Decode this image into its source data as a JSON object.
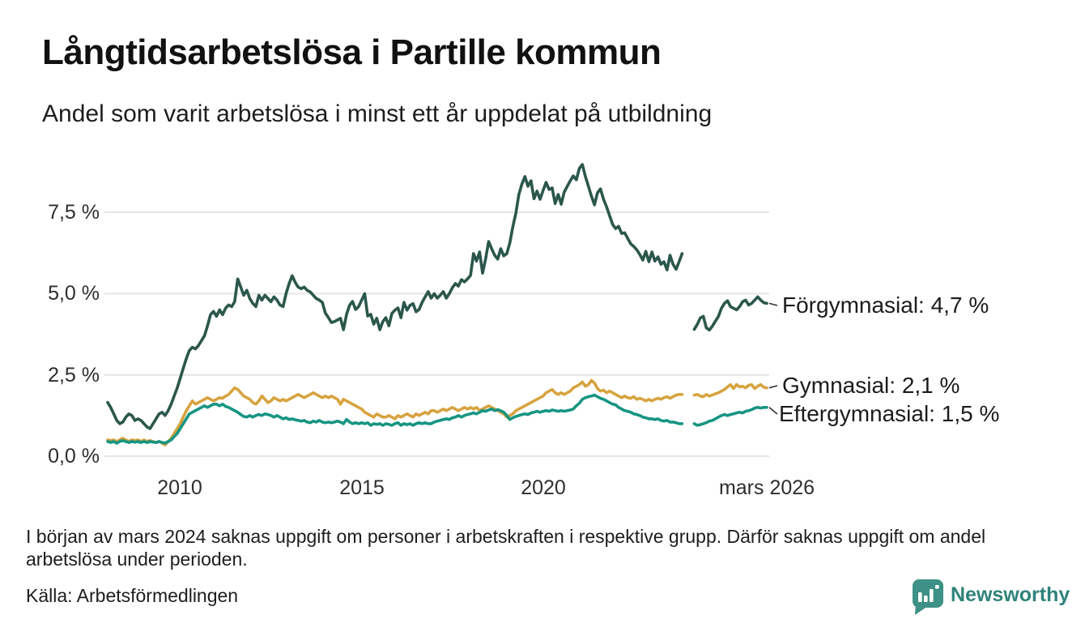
{
  "header": {
    "title": "Långtidsarbetslösa i Partille kommun",
    "subtitle": "Andel som varit arbetslösa i minst ett år uppdelat på utbildning"
  },
  "footer": {
    "note": "I början av mars 2024 saknas uppgift om personer i arbetskraften i respektive grupp. Därför saknas uppgift om andel arbetslösa under perioden.",
    "source": "Källa: Arbetsförmedlingen"
  },
  "branding": {
    "name": "Newsworthy",
    "icon": "newsworthy-speech-bubble-bar-chart-icon",
    "color": "#2f837a",
    "icon_color": "#3e9186"
  },
  "chart_data": {
    "type": "line",
    "unit": "%",
    "x_interval": "monthly",
    "x_start": "2008-01",
    "x_end": "2026-03",
    "missing_data_period": "2023-12 till 2024-02",
    "ylim": [
      0,
      9.5
    ],
    "grid": "horizontal",
    "y_tick_values": [
      0,
      2.5,
      5.0,
      7.5
    ],
    "y_tick_labels": [
      "7,5 %",
      "5,0 %",
      "2,5 %",
      "0,0 %"
    ],
    "x_tick_labels": [
      "2010",
      "2015",
      "2020",
      "mars 2026"
    ],
    "x_tick_month_index": [
      24,
      84,
      144,
      218
    ],
    "colors": {
      "grid": "#e5e5e5",
      "connector": "#333333"
    },
    "series": [
      {
        "id": "forgymnasial",
        "name": "Förgymnasial",
        "end_label": "Förgymnasial: 4,7 %",
        "end_value": 4.7,
        "color": "#2b574b",
        "values": [
          1.65,
          1.5,
          1.3,
          1.1,
          1.0,
          1.05,
          1.2,
          1.3,
          1.25,
          1.1,
          1.15,
          1.1,
          1.0,
          0.9,
          0.85,
          1.0,
          1.15,
          1.3,
          1.35,
          1.25,
          1.4,
          1.6,
          1.85,
          2.1,
          2.4,
          2.7,
          3.0,
          3.25,
          3.35,
          3.3,
          3.4,
          3.55,
          3.7,
          4.0,
          4.35,
          4.45,
          4.3,
          4.5,
          4.35,
          4.55,
          4.65,
          4.6,
          4.75,
          5.45,
          5.2,
          4.95,
          5.1,
          4.85,
          4.7,
          4.6,
          4.95,
          4.8,
          4.95,
          4.85,
          4.75,
          4.9,
          4.8,
          4.65,
          4.6,
          5.0,
          5.3,
          5.55,
          5.35,
          5.2,
          5.15,
          5.2,
          5.1,
          5.05,
          4.95,
          4.85,
          4.8,
          4.73,
          4.4,
          4.26,
          4.11,
          4.14,
          4.19,
          4.24,
          3.89,
          4.36,
          4.64,
          4.76,
          4.51,
          4.6,
          4.8,
          5.0,
          4.31,
          4.36,
          4.06,
          4.24,
          3.89,
          4.14,
          4.26,
          4.01,
          4.39,
          4.49,
          4.56,
          4.26,
          4.73,
          4.49,
          4.64,
          4.69,
          4.44,
          4.51,
          4.73,
          4.9,
          5.06,
          4.86,
          5.0,
          4.86,
          4.95,
          5.06,
          4.86,
          5.0,
          5.18,
          5.31,
          5.23,
          5.43,
          5.36,
          5.45,
          5.56,
          6.23,
          6.0,
          6.28,
          5.63,
          6.06,
          6.6,
          6.38,
          6.18,
          6.06,
          6.38,
          6.16,
          6.23,
          6.55,
          7.05,
          7.47,
          8.05,
          8.37,
          8.6,
          8.3,
          8.47,
          7.92,
          8.15,
          7.9,
          8.17,
          8.42,
          8.2,
          8.25,
          7.77,
          8.05,
          7.75,
          8.12,
          8.3,
          8.47,
          8.62,
          8.5,
          8.85,
          8.97,
          8.6,
          8.3,
          8.0,
          7.73,
          8.1,
          8.22,
          7.9,
          7.67,
          7.4,
          7.13,
          7.0,
          7.07,
          6.85,
          6.87,
          6.7,
          6.53,
          6.45,
          6.35,
          6.2,
          6.03,
          6.3,
          5.98,
          6.28,
          6.0,
          6.13,
          5.9,
          5.98,
          5.73,
          6.18,
          5.9,
          5.75,
          5.98,
          6.23,
          null,
          null,
          null,
          3.9,
          4.05,
          4.25,
          4.3,
          3.95,
          3.88,
          4.0,
          4.15,
          4.3,
          4.55,
          4.7,
          4.78,
          4.6,
          4.55,
          4.5,
          4.6,
          4.75,
          4.8,
          4.65,
          4.7,
          4.8,
          4.9,
          4.8,
          4.72,
          4.7
        ]
      },
      {
        "id": "gymnasial",
        "name": "Gymnasial",
        "end_label": "Gymnasial: 2,1 %",
        "end_value": 2.1,
        "color": "#d7a33f",
        "values": [
          0.5,
          0.48,
          0.5,
          0.45,
          0.5,
          0.55,
          0.5,
          0.45,
          0.5,
          0.48,
          0.5,
          0.45,
          0.5,
          0.45,
          0.48,
          0.45,
          0.42,
          0.45,
          0.4,
          0.35,
          0.45,
          0.55,
          0.7,
          0.85,
          1.0,
          1.2,
          1.4,
          1.55,
          1.7,
          1.6,
          1.65,
          1.7,
          1.75,
          1.8,
          1.75,
          1.7,
          1.75,
          1.8,
          1.78,
          1.85,
          1.9,
          2.0,
          2.1,
          2.05,
          1.95,
          1.85,
          1.8,
          1.75,
          1.65,
          1.6,
          1.7,
          1.85,
          1.75,
          1.65,
          1.7,
          1.8,
          1.75,
          1.7,
          1.75,
          1.7,
          1.75,
          1.8,
          1.85,
          1.9,
          1.85,
          1.8,
          1.85,
          1.9,
          1.95,
          1.9,
          1.85,
          1.8,
          1.85,
          1.8,
          1.85,
          1.8,
          1.75,
          1.6,
          1.75,
          1.7,
          1.65,
          1.6,
          1.55,
          1.5,
          1.45,
          1.35,
          1.3,
          1.25,
          1.2,
          1.3,
          1.25,
          1.2,
          1.2,
          1.25,
          1.2,
          1.15,
          1.25,
          1.2,
          1.25,
          1.3,
          1.25,
          1.2,
          1.3,
          1.25,
          1.3,
          1.35,
          1.3,
          1.4,
          1.4,
          1.35,
          1.4,
          1.45,
          1.4,
          1.45,
          1.5,
          1.45,
          1.4,
          1.45,
          1.5,
          1.45,
          1.5,
          1.45,
          1.5,
          1.4,
          1.45,
          1.5,
          1.55,
          1.5,
          1.45,
          1.4,
          1.35,
          1.3,
          1.2,
          1.25,
          1.3,
          1.4,
          1.45,
          1.5,
          1.55,
          1.6,
          1.65,
          1.7,
          1.75,
          1.8,
          1.85,
          1.95,
          2.0,
          2.05,
          1.95,
          1.9,
          1.95,
          1.9,
          1.95,
          2.0,
          2.1,
          2.15,
          2.2,
          2.28,
          2.15,
          2.2,
          2.33,
          2.25,
          2.08,
          2.0,
          2.03,
          1.95,
          2.0,
          1.95,
          1.9,
          1.85,
          1.8,
          1.85,
          1.8,
          1.78,
          1.83,
          1.75,
          1.78,
          1.75,
          1.7,
          1.75,
          1.7,
          1.75,
          1.78,
          1.75,
          1.8,
          1.83,
          1.78,
          1.83,
          1.88,
          1.9,
          1.9,
          null,
          null,
          null,
          1.88,
          1.9,
          1.85,
          1.83,
          1.9,
          1.85,
          1.88,
          1.92,
          1.95,
          2.0,
          2.05,
          2.13,
          2.2,
          2.08,
          2.2,
          2.13,
          2.15,
          2.1,
          2.18,
          2.2,
          2.08,
          2.15,
          2.2,
          2.12,
          2.1
        ]
      },
      {
        "id": "eftergymnasial",
        "name": "Eftergymnasial",
        "end_label": "Eftergymnasial: 1,5 %",
        "end_value": 1.5,
        "color": "#169582",
        "values": [
          0.45,
          0.42,
          0.45,
          0.4,
          0.45,
          0.48,
          0.45,
          0.42,
          0.45,
          0.43,
          0.45,
          0.42,
          0.45,
          0.42,
          0.45,
          0.43,
          0.42,
          0.45,
          0.42,
          0.4,
          0.45,
          0.5,
          0.6,
          0.7,
          0.85,
          1.0,
          1.15,
          1.3,
          1.35,
          1.4,
          1.45,
          1.5,
          1.55,
          1.5,
          1.55,
          1.6,
          1.6,
          1.55,
          1.6,
          1.53,
          1.5,
          1.45,
          1.4,
          1.35,
          1.28,
          1.22,
          1.2,
          1.25,
          1.2,
          1.25,
          1.28,
          1.25,
          1.3,
          1.28,
          1.25,
          1.2,
          1.25,
          1.2,
          1.15,
          1.18,
          1.13,
          1.15,
          1.12,
          1.1,
          1.08,
          1.1,
          1.05,
          1.03,
          1.08,
          1.05,
          1.1,
          1.05,
          1.03,
          1.05,
          1.03,
          1.05,
          1.08,
          1.05,
          1.0,
          1.13,
          1.05,
          1.0,
          1.03,
          1.0,
          1.03,
          1.0,
          1.03,
          0.95,
          1.0,
          0.98,
          1.0,
          0.95,
          1.0,
          0.98,
          0.95,
          1.0,
          1.03,
          0.95,
          1.0,
          0.97,
          1.0,
          0.95,
          1.0,
          1.03,
          1.0,
          1.03,
          1.0,
          1.0,
          1.05,
          1.08,
          1.1,
          1.13,
          1.15,
          1.13,
          1.18,
          1.2,
          1.25,
          1.2,
          1.25,
          1.28,
          1.3,
          1.33,
          1.3,
          1.35,
          1.4,
          1.38,
          1.42,
          1.45,
          1.4,
          1.43,
          1.4,
          1.35,
          1.25,
          1.13,
          1.18,
          1.22,
          1.25,
          1.28,
          1.3,
          1.28,
          1.33,
          1.35,
          1.38,
          1.35,
          1.38,
          1.4,
          1.38,
          1.42,
          1.4,
          1.38,
          1.4,
          1.38,
          1.4,
          1.42,
          1.45,
          1.55,
          1.63,
          1.75,
          1.8,
          1.83,
          1.85,
          1.88,
          1.83,
          1.78,
          1.75,
          1.7,
          1.65,
          1.6,
          1.58,
          1.5,
          1.45,
          1.4,
          1.38,
          1.35,
          1.3,
          1.28,
          1.25,
          1.2,
          1.18,
          1.15,
          1.15,
          1.13,
          1.15,
          1.1,
          1.08,
          1.1,
          1.05,
          1.05,
          1.03,
          1.0,
          1.0,
          null,
          null,
          null,
          1.0,
          0.95,
          0.97,
          1.0,
          1.03,
          1.08,
          1.1,
          1.15,
          1.2,
          1.25,
          1.28,
          1.25,
          1.28,
          1.3,
          1.33,
          1.35,
          1.33,
          1.38,
          1.4,
          1.43,
          1.48,
          1.5,
          1.48,
          1.5,
          1.5
        ]
      }
    ]
  }
}
